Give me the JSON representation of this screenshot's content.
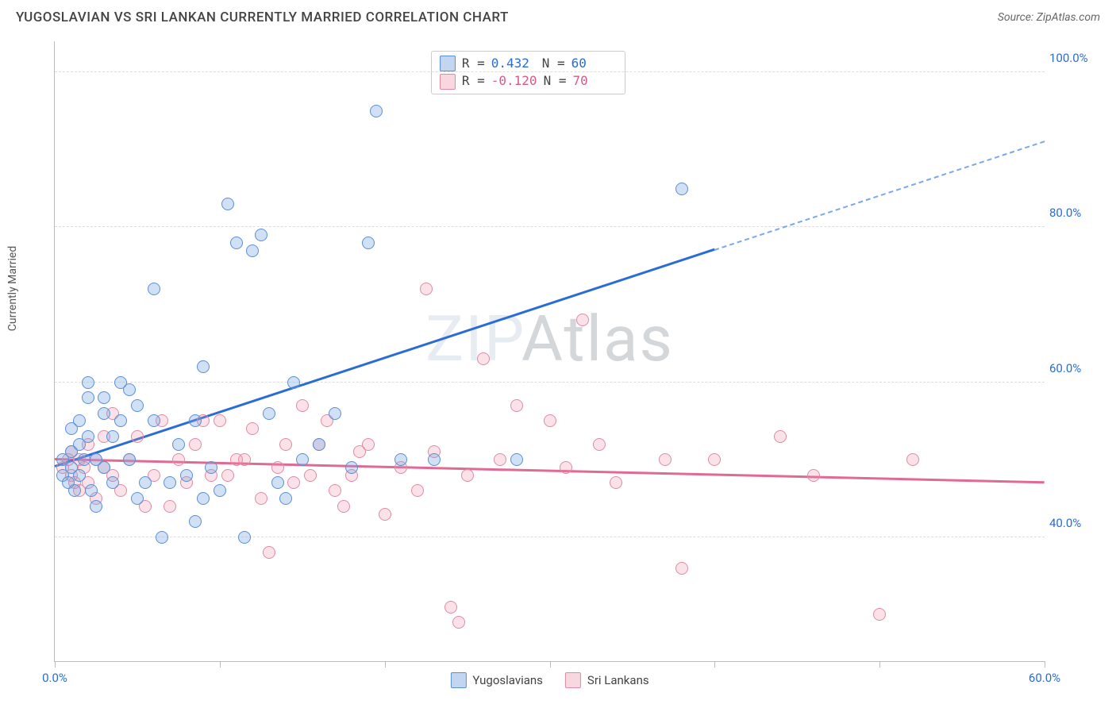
{
  "title": "YUGOSLAVIAN VS SRI LANKAN CURRENTLY MARRIED CORRELATION CHART",
  "source_label": "Source: ",
  "source_value": "ZipAtlas.com",
  "ylabel": "Currently Married",
  "watermark_a": "ZIP",
  "watermark_b": "Atlas",
  "chart": {
    "type": "scatter",
    "xlim": [
      0,
      60
    ],
    "ylim": [
      24,
      104
    ],
    "x_ticks": [
      0,
      10,
      20,
      30,
      40,
      50,
      60
    ],
    "x_tick_labels": {
      "0": "0.0%",
      "60": "60.0%"
    },
    "y_ticks": [
      40,
      60,
      80,
      100
    ],
    "y_tick_labels": [
      "40.0%",
      "60.0%",
      "80.0%",
      "100.0%"
    ],
    "background_color": "#ffffff",
    "grid_color": "#dddddd",
    "marker_radius": 8,
    "series": [
      {
        "name": "Yugoslavians",
        "color_fill": "rgba(120,165,225,0.35)",
        "color_stroke": "#5a8fd6",
        "R": "0.432",
        "N": "60",
        "trend": {
          "x0": 0,
          "y0": 49,
          "x1_solid": 40,
          "y1_solid": 77,
          "x1_dash": 60,
          "y1_dash": 91,
          "color": "#2a6cd6"
        },
        "points": [
          [
            0.5,
            50
          ],
          [
            0.5,
            48
          ],
          [
            0.8,
            47
          ],
          [
            1,
            51
          ],
          [
            1,
            49
          ],
          [
            1,
            54
          ],
          [
            1.2,
            46
          ],
          [
            1.5,
            52
          ],
          [
            1.5,
            55
          ],
          [
            1.5,
            48
          ],
          [
            1.8,
            50
          ],
          [
            2,
            53
          ],
          [
            2,
            58
          ],
          [
            2,
            60
          ],
          [
            2.2,
            46
          ],
          [
            2.5,
            44
          ],
          [
            2.5,
            50
          ],
          [
            3,
            56
          ],
          [
            3,
            49
          ],
          [
            3,
            58
          ],
          [
            3.5,
            53
          ],
          [
            3.5,
            47
          ],
          [
            4,
            55
          ],
          [
            4,
            60
          ],
          [
            4.5,
            59
          ],
          [
            4.5,
            50
          ],
          [
            5,
            45
          ],
          [
            5,
            57
          ],
          [
            5.5,
            47
          ],
          [
            6,
            55
          ],
          [
            6,
            72
          ],
          [
            6.5,
            40
          ],
          [
            7,
            47
          ],
          [
            7.5,
            52
          ],
          [
            8,
            48
          ],
          [
            8.5,
            42
          ],
          [
            8.5,
            55
          ],
          [
            9,
            62
          ],
          [
            9,
            45
          ],
          [
            9.5,
            49
          ],
          [
            10,
            46
          ],
          [
            10.5,
            83
          ],
          [
            11,
            78
          ],
          [
            11.5,
            40
          ],
          [
            12,
            77
          ],
          [
            12.5,
            79
          ],
          [
            13,
            56
          ],
          [
            13.5,
            47
          ],
          [
            14,
            45
          ],
          [
            14.5,
            60
          ],
          [
            15,
            50
          ],
          [
            16,
            52
          ],
          [
            17,
            56
          ],
          [
            18,
            49
          ],
          [
            19,
            78
          ],
          [
            19.5,
            95
          ],
          [
            21,
            50
          ],
          [
            23,
            50
          ],
          [
            28,
            50
          ],
          [
            38,
            85
          ]
        ]
      },
      {
        "name": "Sri Lankans",
        "color_fill": "rgba(235,140,165,0.25)",
        "color_stroke": "#e08aa5",
        "R": "-0.120",
        "N": "70",
        "trend": {
          "x0": 0,
          "y0": 50,
          "x1_solid": 60,
          "y1_solid": 47,
          "color": "#e06a94"
        },
        "points": [
          [
            0.5,
            49
          ],
          [
            0.8,
            50
          ],
          [
            1,
            48
          ],
          [
            1,
            51
          ],
          [
            1.2,
            47
          ],
          [
            1.5,
            50
          ],
          [
            1.5,
            46
          ],
          [
            1.8,
            49
          ],
          [
            2,
            52
          ],
          [
            2,
            47
          ],
          [
            2.5,
            50
          ],
          [
            2.5,
            45
          ],
          [
            3,
            49
          ],
          [
            3,
            53
          ],
          [
            3.5,
            48
          ],
          [
            3.5,
            56
          ],
          [
            4,
            46
          ],
          [
            4.5,
            50
          ],
          [
            5,
            53
          ],
          [
            5.5,
            44
          ],
          [
            6,
            48
          ],
          [
            6.5,
            55
          ],
          [
            7,
            44
          ],
          [
            7.5,
            50
          ],
          [
            8,
            47
          ],
          [
            8.5,
            52
          ],
          [
            9,
            55
          ],
          [
            9.5,
            48
          ],
          [
            10,
            55
          ],
          [
            10.5,
            48
          ],
          [
            11,
            50
          ],
          [
            11.5,
            50
          ],
          [
            12,
            54
          ],
          [
            12.5,
            45
          ],
          [
            13,
            38
          ],
          [
            13.5,
            49
          ],
          [
            14,
            52
          ],
          [
            14.5,
            47
          ],
          [
            15,
            57
          ],
          [
            15.5,
            48
          ],
          [
            16,
            52
          ],
          [
            16.5,
            55
          ],
          [
            17,
            46
          ],
          [
            17.5,
            44
          ],
          [
            18,
            48
          ],
          [
            18.5,
            51
          ],
          [
            19,
            52
          ],
          [
            20,
            43
          ],
          [
            21,
            49
          ],
          [
            22,
            46
          ],
          [
            22.5,
            72
          ],
          [
            23,
            51
          ],
          [
            24,
            31
          ],
          [
            24.5,
            29
          ],
          [
            25,
            48
          ],
          [
            26,
            63
          ],
          [
            27,
            50
          ],
          [
            28,
            57
          ],
          [
            30,
            55
          ],
          [
            31,
            49
          ],
          [
            32,
            68
          ],
          [
            33,
            52
          ],
          [
            34,
            47
          ],
          [
            37,
            50
          ],
          [
            38,
            36
          ],
          [
            40,
            50
          ],
          [
            44,
            53
          ],
          [
            46,
            48
          ],
          [
            50,
            30
          ],
          [
            52,
            50
          ]
        ]
      }
    ],
    "legend_top": {
      "R_label": "R =",
      "N_label": "N ="
    },
    "legend_bottom": [
      "Yugoslavians",
      "Sri Lankans"
    ]
  }
}
